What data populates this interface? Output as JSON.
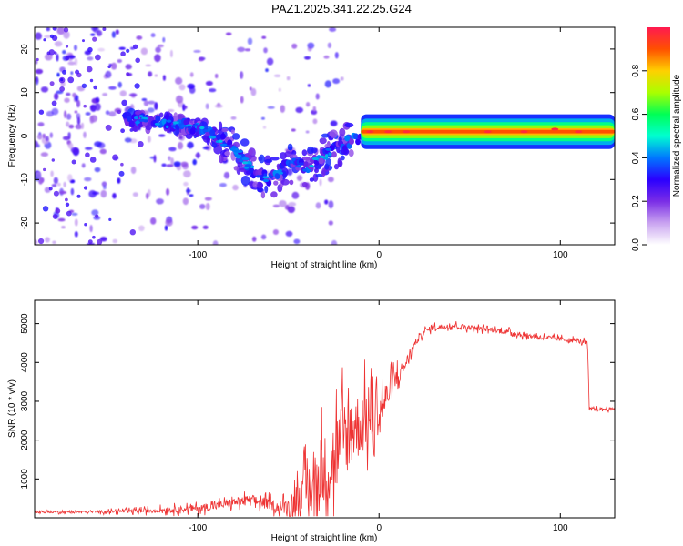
{
  "title": "PAZ1.2025.341.22.25.G24",
  "chart_data": [
    {
      "type": "heatmap",
      "name": "spectrogram",
      "xlabel": "Height of straight line (km)",
      "ylabel": "Frequency (Hz)",
      "xlim": [
        -190,
        130
      ],
      "ylim": [
        -25,
        25
      ],
      "xticks": [
        -100,
        0,
        100
      ],
      "yticks": [
        20,
        10,
        0,
        -10,
        -20
      ],
      "colorbar": {
        "label": "Normalized spectral amplitude",
        "range": [
          0,
          1
        ],
        "ticks": [
          0.0,
          0.2,
          0.4,
          0.6,
          0.8
        ],
        "tick_labels": [
          "0.0",
          "0.2",
          "0.4",
          "0.6",
          "0.8"
        ],
        "colormap": [
          "#ffffff",
          "#c9a3f0",
          "#7a2de6",
          "#2a00ff",
          "#0077ff",
          "#00ffd0",
          "#00ff55",
          "#aaff00",
          "#ffd000",
          "#ff5000",
          "#ff1a50"
        ]
      },
      "features": [
        {
          "name": "main tone ridge",
          "x_range": [
            -140,
            130
          ],
          "frequency_profile": [
            [
              -140,
              4
            ],
            [
              -100,
              2
            ],
            [
              -90,
              0
            ],
            [
              -80,
              -3
            ],
            [
              -70,
              -8
            ],
            [
              -60,
              -10
            ],
            [
              -50,
              -6
            ],
            [
              -40,
              -7
            ],
            [
              -20,
              -2
            ],
            [
              -10,
              0
            ],
            [
              0,
              1
            ],
            [
              130,
              1
            ]
          ],
          "amplitude": "high"
        },
        {
          "name": "strong constant tone",
          "x_range": [
            -10,
            130
          ],
          "frequency_hz": 1,
          "normalized_amplitude": 0.9
        },
        {
          "name": "scattered noise",
          "x_range": [
            -190,
            -20
          ],
          "frequency_hz_range": [
            -25,
            25
          ],
          "normalized_amplitude": 0.15
        }
      ]
    },
    {
      "type": "line",
      "name": "snr",
      "xlabel": "Height of straight line (km)",
      "ylabel": "SNR (10 * v/v)",
      "xlim": [
        -190,
        130
      ],
      "ylim": [
        0,
        5600
      ],
      "xticks": [
        -100,
        0,
        100
      ],
      "yticks": [
        1000,
        2000,
        3000,
        4000,
        5000
      ],
      "color": "#ee3333",
      "series": [
        {
          "name": "SNR",
          "x": [
            -190,
            -170,
            -150,
            -130,
            -110,
            -100,
            -90,
            -80,
            -70,
            -60,
            -55,
            -50,
            -45,
            -40,
            -35,
            -30,
            -25,
            -20,
            -15,
            -10,
            -5,
            0,
            5,
            10,
            15,
            20,
            25,
            30,
            35,
            40,
            50,
            60,
            70,
            80,
            90,
            100,
            110,
            115,
            116,
            120,
            130
          ],
          "values": [
            150,
            150,
            160,
            180,
            220,
            250,
            300,
            400,
            450,
            350,
            250,
            300,
            500,
            700,
            900,
            1200,
            1500,
            2000,
            2300,
            2400,
            2500,
            2700,
            3200,
            3600,
            4000,
            4500,
            4800,
            4900,
            4920,
            4950,
            4900,
            4850,
            4800,
            4700,
            4650,
            4600,
            4550,
            4500,
            2800,
            2800,
            2800
          ],
          "spread": [
            60,
            60,
            80,
            120,
            180,
            200,
            220,
            250,
            300,
            300,
            300,
            500,
            900,
            1400,
            1800,
            2100,
            2300,
            2300,
            2100,
            1800,
            1500,
            1200,
            900,
            600,
            300,
            200,
            150,
            150,
            150,
            150,
            140,
            130,
            130,
            130,
            130,
            130,
            130,
            130,
            80,
            80,
            80
          ]
        }
      ]
    }
  ]
}
